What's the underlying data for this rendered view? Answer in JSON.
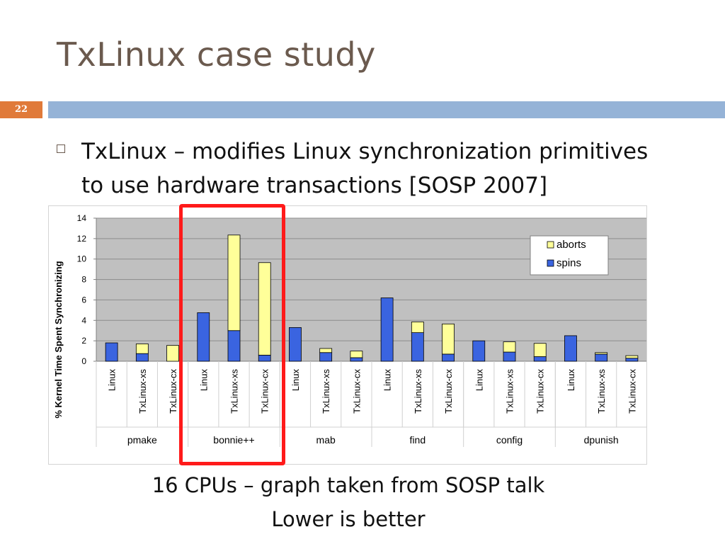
{
  "slide": {
    "title": "TxLinux case study",
    "number": "22",
    "bullet_line1": "TxLinux – modifies Linux synchronization primitives",
    "bullet_line2": "to use hardware transactions [SOSP 2007]",
    "caption_line1": "16 CPUs – graph taken from SOSP talk",
    "caption_line2": "Lower is better",
    "accent_colors": {
      "title_bar": "#95b3d7",
      "slide_number_bg": "#e07a3a",
      "highlight_box": "#ff1a1a"
    }
  },
  "chart_data": {
    "type": "bar",
    "stacked": true,
    "ylabel": "% Kernel Time Spent Synchronizing",
    "ylim": [
      0,
      14
    ],
    "yticks": [
      0,
      2,
      4,
      6,
      8,
      10,
      12,
      14
    ],
    "grid": true,
    "legend_position": "top-right",
    "groups": [
      "pmake",
      "bonnie++",
      "mab",
      "find",
      "config",
      "dpunish"
    ],
    "subcategories": [
      "Linux",
      "TxLinux-xs",
      "TxLinux-cx"
    ],
    "series": [
      {
        "name": "spins",
        "color": "#3a64e0",
        "values": [
          1.8,
          0.75,
          0.0,
          4.75,
          3.0,
          0.6,
          3.3,
          0.85,
          0.35,
          6.2,
          2.8,
          0.7,
          2.0,
          0.9,
          0.45,
          2.5,
          0.7,
          0.3
        ]
      },
      {
        "name": "aborts",
        "color": "#ffff99",
        "values": [
          0.0,
          0.95,
          1.55,
          0.0,
          9.35,
          9.05,
          0.0,
          0.4,
          0.65,
          0.0,
          1.05,
          2.95,
          0.0,
          1.0,
          1.3,
          0.0,
          0.15,
          0.25
        ]
      }
    ]
  }
}
